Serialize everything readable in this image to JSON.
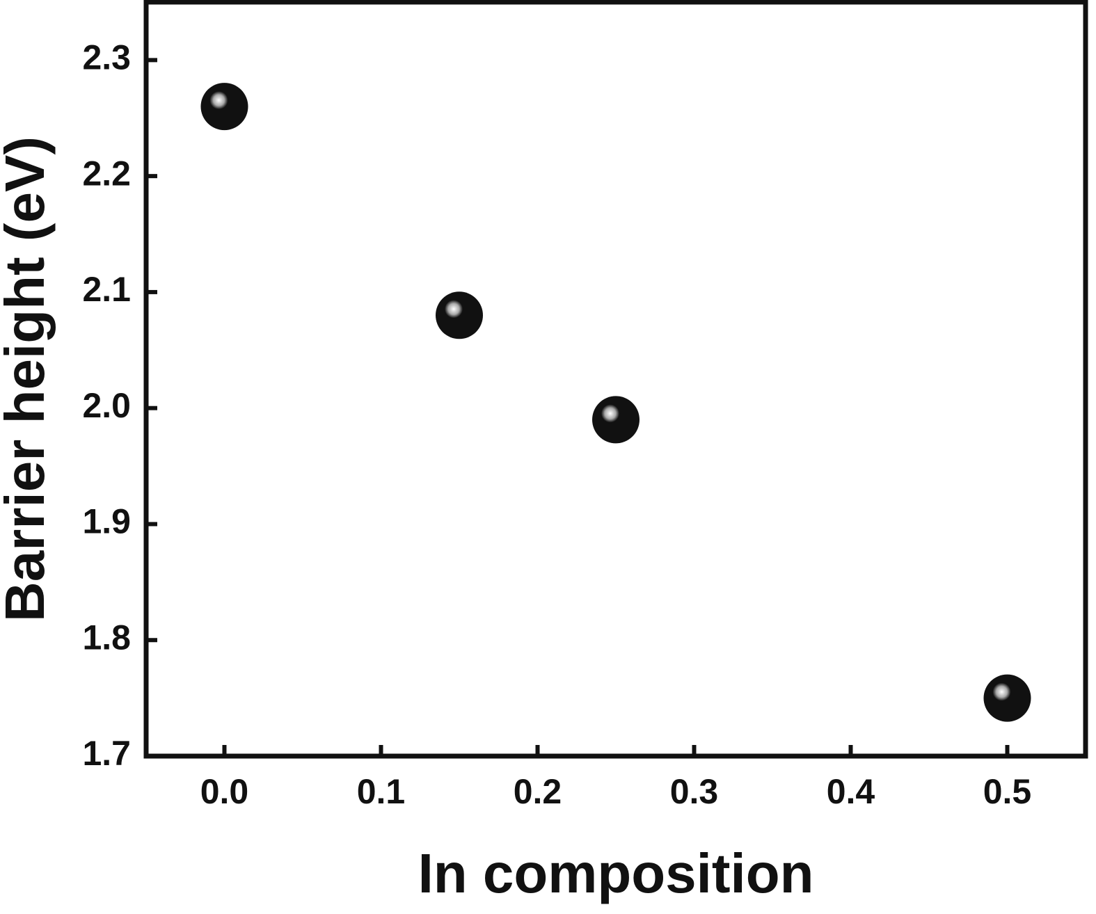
{
  "chart_data": {
    "type": "scatter",
    "x_label": "In composition",
    "y_label": "Barrier height (eV)",
    "x": [
      0,
      0.15,
      0.25,
      0.5
    ],
    "values": [
      2.26,
      2.08,
      1.99,
      1.75
    ],
    "color": "#111111",
    "xlim": [
      -0.05,
      0.55
    ],
    "ylim": [
      1.7,
      2.35
    ],
    "xticks": [
      {
        "value": 0,
        "label": "0.0"
      },
      0.1,
      0.2,
      0.3,
      0.4,
      0.5
    ],
    "yticks": [
      1.7,
      1.8,
      1.9,
      {
        "value": 2,
        "label": "2.0"
      },
      2.1,
      2.2,
      2.3
    ],
    "grid": false
  }
}
